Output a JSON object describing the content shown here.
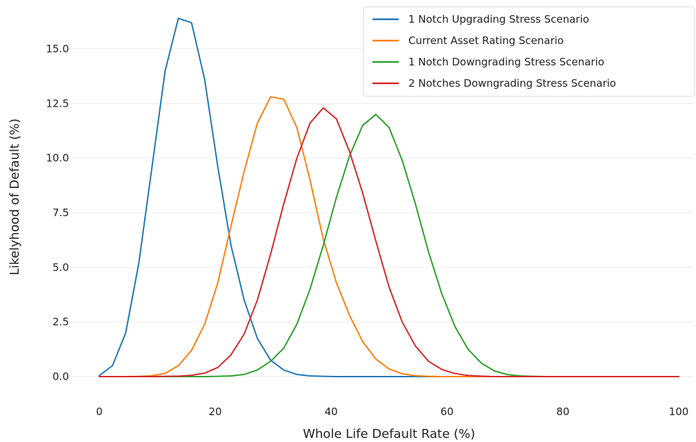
{
  "chart_data": {
    "type": "line",
    "title": "",
    "xlabel": "Whole Life Default Rate (%)",
    "ylabel": "Likelyhood of Default (%)",
    "xlim": [
      0,
      100
    ],
    "ylim": [
      0,
      16.5
    ],
    "xticks": [
      0,
      20,
      40,
      60,
      80,
      100
    ],
    "xtick_labels": [
      "0",
      "20",
      "40",
      "60",
      "80",
      "100"
    ],
    "yticks": [
      0,
      2.5,
      5,
      7.5,
      10,
      12.5,
      15
    ],
    "ytick_labels": [
      "0.0",
      "2.5",
      "5.0",
      "7.5",
      "10.0",
      "12.5",
      "15.0"
    ],
    "grid": "horizontal",
    "legend_position": "top-right",
    "x": [
      0,
      2.27,
      4.55,
      6.82,
      9.09,
      11.36,
      13.64,
      15.91,
      18.18,
      20.45,
      22.73,
      25,
      27.27,
      29.55,
      31.82,
      34.09,
      36.36,
      38.64,
      40.91,
      43.18,
      45.45,
      47.73,
      50,
      52.27,
      54.55,
      56.82,
      59.09,
      61.36,
      63.64,
      65.91,
      68.18,
      70.45,
      72.73,
      75,
      77.27,
      79.55,
      81.82,
      84.09,
      86.36,
      88.64,
      90.91,
      93.18,
      95.45,
      97.73,
      100
    ],
    "series": [
      {
        "name": "1 Notch Upgrading Stress Scenario",
        "color": "#1f77b4",
        "values": [
          0.05,
          0.5,
          2.0,
          5.2,
          9.6,
          14.0,
          16.4,
          16.2,
          13.6,
          9.6,
          6.0,
          3.5,
          1.75,
          0.75,
          0.3,
          0.1,
          0.03,
          0.01,
          0.0,
          0,
          0,
          0,
          0,
          0,
          0,
          0,
          0,
          0,
          0,
          0,
          0,
          0,
          0,
          0,
          0,
          0,
          0,
          0,
          0,
          0,
          0,
          0,
          0,
          0,
          0
        ]
      },
      {
        "name": "Current Asset Rating Scenario",
        "color": "#ff7f0e",
        "values": [
          0,
          0,
          0,
          0.01,
          0.04,
          0.15,
          0.5,
          1.2,
          2.4,
          4.3,
          6.9,
          9.4,
          11.6,
          12.8,
          12.7,
          11.4,
          9.0,
          6.3,
          4.3,
          2.8,
          1.6,
          0.8,
          0.35,
          0.13,
          0.04,
          0.01,
          0,
          0,
          0,
          0,
          0,
          0,
          0,
          0,
          0,
          0,
          0,
          0,
          0,
          0,
          0,
          0,
          0,
          0,
          0
        ]
      },
      {
        "name": "1 Notch Downgrading Stress Scenario",
        "color": "#2ca02c",
        "values": [
          0,
          0,
          0,
          0,
          0,
          0,
          0,
          0,
          0,
          0.01,
          0.03,
          0.1,
          0.3,
          0.7,
          1.3,
          2.4,
          4.0,
          6.0,
          8.2,
          10.1,
          11.5,
          12.0,
          11.4,
          9.9,
          7.9,
          5.7,
          3.8,
          2.3,
          1.25,
          0.62,
          0.26,
          0.09,
          0.03,
          0.01,
          0,
          0,
          0,
          0,
          0,
          0,
          0,
          0,
          0,
          0,
          0
        ]
      },
      {
        "name": "2 Notches Downgrading Stress Scenario",
        "color": "#d62728",
        "values": [
          0,
          0,
          0,
          0,
          0,
          0.01,
          0.02,
          0.06,
          0.16,
          0.42,
          1.0,
          1.95,
          3.5,
          5.6,
          7.9,
          10.0,
          11.6,
          12.3,
          11.8,
          10.3,
          8.4,
          6.2,
          4.1,
          2.5,
          1.4,
          0.7,
          0.33,
          0.14,
          0.05,
          0.02,
          0,
          0,
          0,
          0,
          0,
          0,
          0,
          0,
          0,
          0,
          0,
          0,
          0,
          0,
          0
        ]
      }
    ]
  }
}
